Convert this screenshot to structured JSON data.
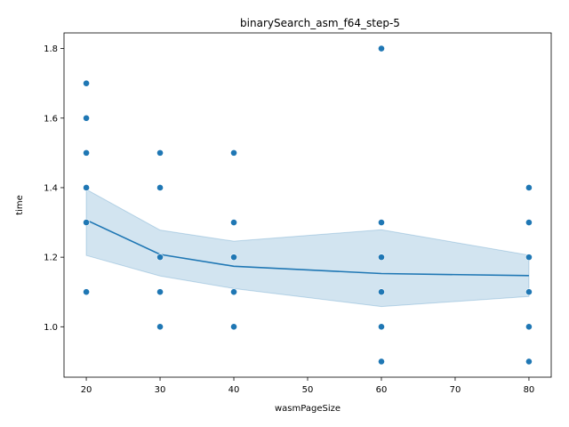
{
  "chart_data": {
    "type": "scatter",
    "title": "binarySearch_asm_f64_step-5",
    "xlabel": "wasmPageSize",
    "ylabel": "time",
    "xlim": [
      16.98,
      83.02
    ],
    "ylim": [
      0.855,
      1.845
    ],
    "x_ticks": [
      20,
      30,
      40,
      50,
      60,
      70,
      80
    ],
    "x_tick_labels": [
      "20",
      "30",
      "40",
      "50",
      "60",
      "70",
      "80"
    ],
    "y_ticks": [
      1.0,
      1.2,
      1.4,
      1.6,
      1.8
    ],
    "y_tick_labels": [
      "1.0",
      "1.2",
      "1.4",
      "1.6",
      "1.8"
    ],
    "grid": false,
    "legend": "none",
    "colors": {
      "points": "#1f77b4",
      "line": "#1f77b4",
      "band": "#1f77b4"
    },
    "points": [
      {
        "x": 20,
        "y": 1.7
      },
      {
        "x": 20,
        "y": 1.6
      },
      {
        "x": 20,
        "y": 1.5
      },
      {
        "x": 20,
        "y": 1.4
      },
      {
        "x": 20,
        "y": 1.3
      },
      {
        "x": 20,
        "y": 1.1
      },
      {
        "x": 30,
        "y": 1.5
      },
      {
        "x": 30,
        "y": 1.4
      },
      {
        "x": 30,
        "y": 1.2
      },
      {
        "x": 30,
        "y": 1.1
      },
      {
        "x": 30,
        "y": 1.0
      },
      {
        "x": 40,
        "y": 1.5
      },
      {
        "x": 40,
        "y": 1.3
      },
      {
        "x": 40,
        "y": 1.2
      },
      {
        "x": 40,
        "y": 1.1
      },
      {
        "x": 40,
        "y": 1.0
      },
      {
        "x": 60,
        "y": 1.8
      },
      {
        "x": 60,
        "y": 1.3
      },
      {
        "x": 60,
        "y": 1.2
      },
      {
        "x": 60,
        "y": 1.1
      },
      {
        "x": 60,
        "y": 1.0
      },
      {
        "x": 60,
        "y": 0.9
      },
      {
        "x": 80,
        "y": 1.4
      },
      {
        "x": 80,
        "y": 1.3
      },
      {
        "x": 80,
        "y": 1.2
      },
      {
        "x": 80,
        "y": 1.1
      },
      {
        "x": 80,
        "y": 1.0
      },
      {
        "x": 80,
        "y": 0.9
      }
    ],
    "mean_line": {
      "x": [
        20,
        30,
        40,
        60,
        80
      ],
      "y": [
        1.307,
        1.208,
        1.174,
        1.153,
        1.147
      ]
    },
    "confidence_band": {
      "x": [
        20,
        30,
        40,
        60,
        80
      ],
      "lower": [
        1.205,
        1.146,
        1.11,
        1.058,
        1.087
      ],
      "upper": [
        1.395,
        1.278,
        1.246,
        1.279,
        1.206
      ]
    }
  }
}
